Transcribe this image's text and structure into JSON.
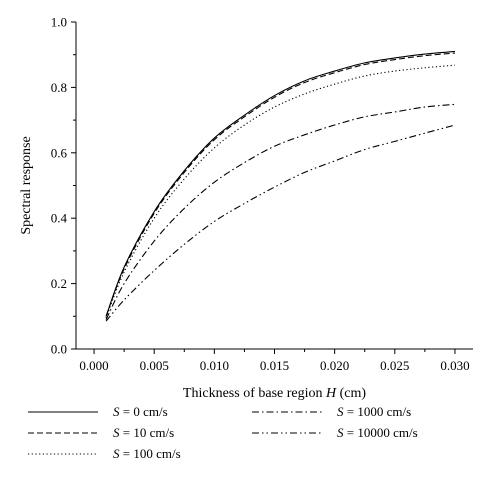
{
  "chart_data": {
    "type": "line",
    "title": "",
    "xlabel": "Thickness of base region",
    "xlabel_var": "H",
    "xlabel_unit": "(cm)",
    "ylabel": "Spectral response",
    "xlim": [
      -0.0015,
      0.0315
    ],
    "ylim": [
      0,
      1.0
    ],
    "xticks": [
      "0.000",
      "0.005",
      "0.010",
      "0.015",
      "0.020",
      "0.025",
      "0.030"
    ],
    "yticks": [
      "0.0",
      "0.2",
      "0.4",
      "0.6",
      "0.8",
      "1.0"
    ],
    "grid": false,
    "legend_position": "bottom",
    "x": [
      0.001,
      0.0025,
      0.005,
      0.0075,
      0.01,
      0.0125,
      0.015,
      0.0175,
      0.02,
      0.0225,
      0.025,
      0.0275,
      0.03
    ],
    "series": [
      {
        "name": "S = 0 cm/s",
        "var": "S",
        "rest": " = 0 cm/s",
        "dash": "solid",
        "values": [
          0.1,
          0.25,
          0.42,
          0.545,
          0.645,
          0.715,
          0.775,
          0.82,
          0.85,
          0.875,
          0.89,
          0.902,
          0.91
        ]
      },
      {
        "name": "S = 10 cm/s",
        "var": "S",
        "rest": " = 10 cm/s",
        "dash": "dashed",
        "values": [
          0.1,
          0.245,
          0.415,
          0.54,
          0.64,
          0.71,
          0.77,
          0.815,
          0.845,
          0.87,
          0.885,
          0.897,
          0.905
        ]
      },
      {
        "name": "S = 100 cm/s",
        "var": "S",
        "rest": " = 100 cm/s",
        "dash": "dotted",
        "values": [
          0.095,
          0.235,
          0.4,
          0.52,
          0.615,
          0.685,
          0.74,
          0.78,
          0.81,
          0.835,
          0.85,
          0.86,
          0.868
        ]
      },
      {
        "name": "S = 1000 cm/s",
        "var": "S",
        "rest": " = 1000 cm/s",
        "dash": "dashdot",
        "values": [
          0.09,
          0.2,
          0.33,
          0.43,
          0.51,
          0.57,
          0.62,
          0.655,
          0.685,
          0.71,
          0.725,
          0.74,
          0.748
        ]
      },
      {
        "name": "S = 10000 cm/s",
        "var": "S",
        "rest": " = 10000 cm/s",
        "dash": "dashdotdot",
        "values": [
          0.085,
          0.15,
          0.24,
          0.32,
          0.39,
          0.445,
          0.495,
          0.54,
          0.575,
          0.61,
          0.635,
          0.66,
          0.685
        ]
      }
    ]
  }
}
